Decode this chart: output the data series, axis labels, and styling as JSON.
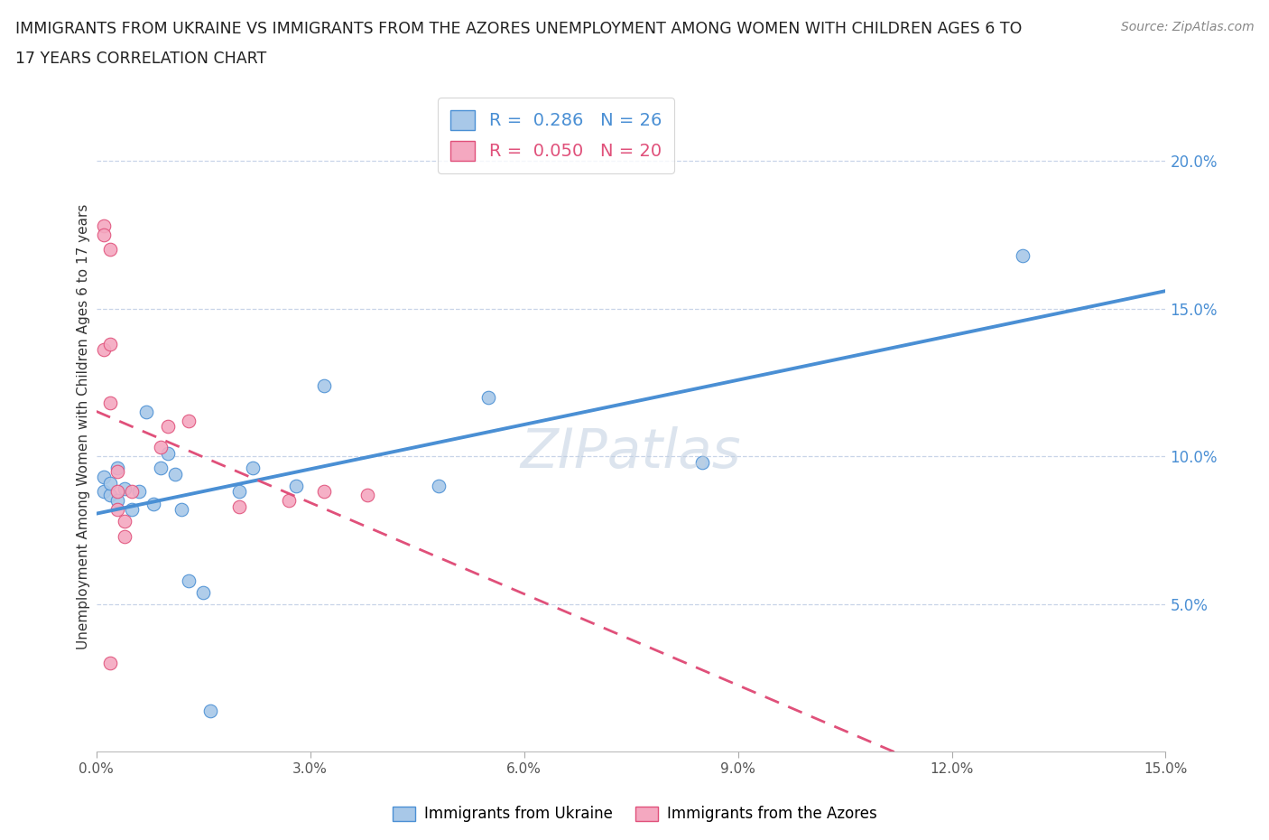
{
  "title_line1": "IMMIGRANTS FROM UKRAINE VS IMMIGRANTS FROM THE AZORES UNEMPLOYMENT AMONG WOMEN WITH CHILDREN AGES 6 TO",
  "title_line2": "17 YEARS CORRELATION CHART",
  "source": "Source: ZipAtlas.com",
  "ylabel": "Unemployment Among Women with Children Ages 6 to 17 years",
  "xlim": [
    0,
    0.15
  ],
  "ylim": [
    0,
    0.22
  ],
  "xticks": [
    0.0,
    0.03,
    0.06,
    0.09,
    0.12,
    0.15
  ],
  "yticks": [
    0.05,
    0.1,
    0.15,
    0.2
  ],
  "ukraine_R": 0.286,
  "ukraine_N": 26,
  "azores_R": 0.05,
  "azores_N": 20,
  "ukraine_color": "#a8c8e8",
  "ukraine_line_color": "#4a8fd4",
  "azores_color": "#f4a8c0",
  "azores_line_color": "#e0507a",
  "ukraine_x": [
    0.001,
    0.001,
    0.002,
    0.002,
    0.003,
    0.003,
    0.004,
    0.005,
    0.006,
    0.007,
    0.008,
    0.009,
    0.01,
    0.011,
    0.012,
    0.013,
    0.015,
    0.016,
    0.02,
    0.022,
    0.028,
    0.032,
    0.048,
    0.055,
    0.085,
    0.13
  ],
  "ukraine_y": [
    0.088,
    0.093,
    0.087,
    0.091,
    0.085,
    0.096,
    0.089,
    0.082,
    0.088,
    0.115,
    0.084,
    0.096,
    0.101,
    0.094,
    0.082,
    0.058,
    0.054,
    0.014,
    0.088,
    0.096,
    0.09,
    0.124,
    0.09,
    0.12,
    0.098,
    0.168
  ],
  "azores_x": [
    0.001,
    0.001,
    0.001,
    0.002,
    0.002,
    0.002,
    0.002,
    0.003,
    0.003,
    0.003,
    0.004,
    0.004,
    0.005,
    0.009,
    0.01,
    0.013,
    0.02,
    0.027,
    0.032,
    0.038
  ],
  "azores_y": [
    0.178,
    0.175,
    0.136,
    0.17,
    0.138,
    0.118,
    0.03,
    0.095,
    0.088,
    0.082,
    0.078,
    0.073,
    0.088,
    0.103,
    0.11,
    0.112,
    0.083,
    0.085,
    0.088,
    0.087
  ],
  "watermark": "ZIPatlas",
  "background_color": "#ffffff",
  "grid_color": "#c8d4e8",
  "legend_label_ukraine": "Immigrants from Ukraine",
  "legend_label_azores": "Immigrants from the Azores"
}
